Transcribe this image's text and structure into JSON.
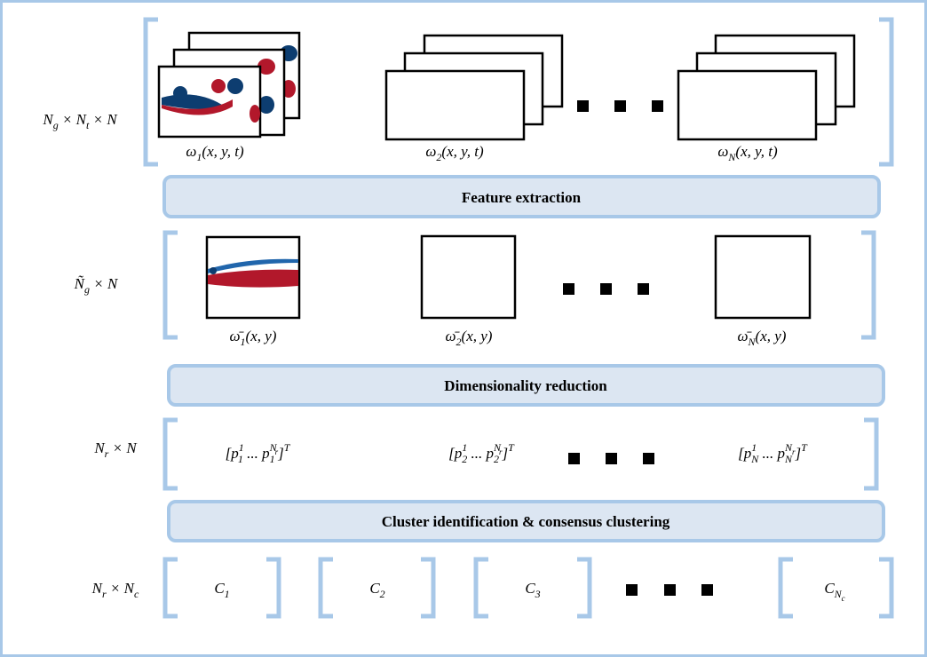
{
  "rows": [
    {
      "label": [
        {
          "text": "N"
        },
        {
          "sub": "g"
        },
        {
          "text": " × N"
        },
        {
          "sub": "t"
        },
        {
          "text": " × N"
        }
      ],
      "items": [
        {
          "label": [
            {
              "text": "ω"
            },
            {
              "sub": "1"
            },
            {
              "text": "(x, y, t)"
            }
          ]
        },
        {
          "label": [
            {
              "text": "ω"
            },
            {
              "sub": "2"
            },
            {
              "text": "(x, y, t)"
            }
          ]
        },
        {
          "label": [
            {
              "text": "ω"
            },
            {
              "sub": "N"
            },
            {
              "text": "(x, y, t)"
            }
          ]
        }
      ]
    },
    {
      "label": [
        {
          "text": "Ñ"
        },
        {
          "sub": "g"
        },
        {
          "text": " × N"
        }
      ],
      "items": [
        {
          "label": [
            {
              "text": "ω̄"
            },
            {
              "sub": "1"
            },
            {
              "text": "(x, y)"
            }
          ]
        },
        {
          "label": [
            {
              "text": "ω̄"
            },
            {
              "sub": "2"
            },
            {
              "text": "(x, y)"
            }
          ]
        },
        {
          "label": [
            {
              "text": "ω̄"
            },
            {
              "sub": "N"
            },
            {
              "text": "(x, y)"
            }
          ]
        }
      ]
    },
    {
      "label": [
        {
          "text": "N"
        },
        {
          "sub": "r"
        },
        {
          "text": " × N"
        }
      ],
      "items": [
        {
          "label": [
            {
              "text": "[p"
            },
            {
              "sub": "1",
              "sup": "1"
            },
            {
              "text": " ... p"
            },
            {
              "sub": "1",
              "sup": "N"
            },
            {
              "supsub": "r"
            },
            {
              "text": "]"
            },
            {
              "sup": "T"
            }
          ]
        },
        {
          "label": [
            {
              "text": "[p"
            },
            {
              "sub": "2",
              "sup": "1"
            },
            {
              "text": " ... p"
            },
            {
              "sub": "2",
              "sup": "N"
            },
            {
              "supsub": "r"
            },
            {
              "text": "]"
            },
            {
              "sup": "T"
            }
          ]
        },
        {
          "label": [
            {
              "text": "[p"
            },
            {
              "sub": "N",
              "sup": "1"
            },
            {
              "text": " ... p"
            },
            {
              "sub": "N",
              "sup": "N"
            },
            {
              "supsub": "r"
            },
            {
              "text": "]"
            },
            {
              "sup": "T"
            }
          ]
        }
      ]
    },
    {
      "label": [
        {
          "text": "N"
        },
        {
          "sub": "r"
        },
        {
          "text": " × N"
        },
        {
          "sub": "c"
        }
      ],
      "items": [
        {
          "label": [
            {
              "text": "C"
            },
            {
              "sub": "1"
            }
          ]
        },
        {
          "label": [
            {
              "text": "C"
            },
            {
              "sub": "2"
            }
          ]
        },
        {
          "label": [
            {
              "text": "C"
            },
            {
              "sub": "3"
            }
          ]
        },
        {
          "label": [
            {
              "text": "C"
            },
            {
              "sub": "N"
            },
            {
              "subsub": "c"
            }
          ]
        }
      ]
    }
  ],
  "stages": [
    "Feature extraction",
    "Dimensionality reduction",
    "Cluster identification & consensus clustering"
  ]
}
